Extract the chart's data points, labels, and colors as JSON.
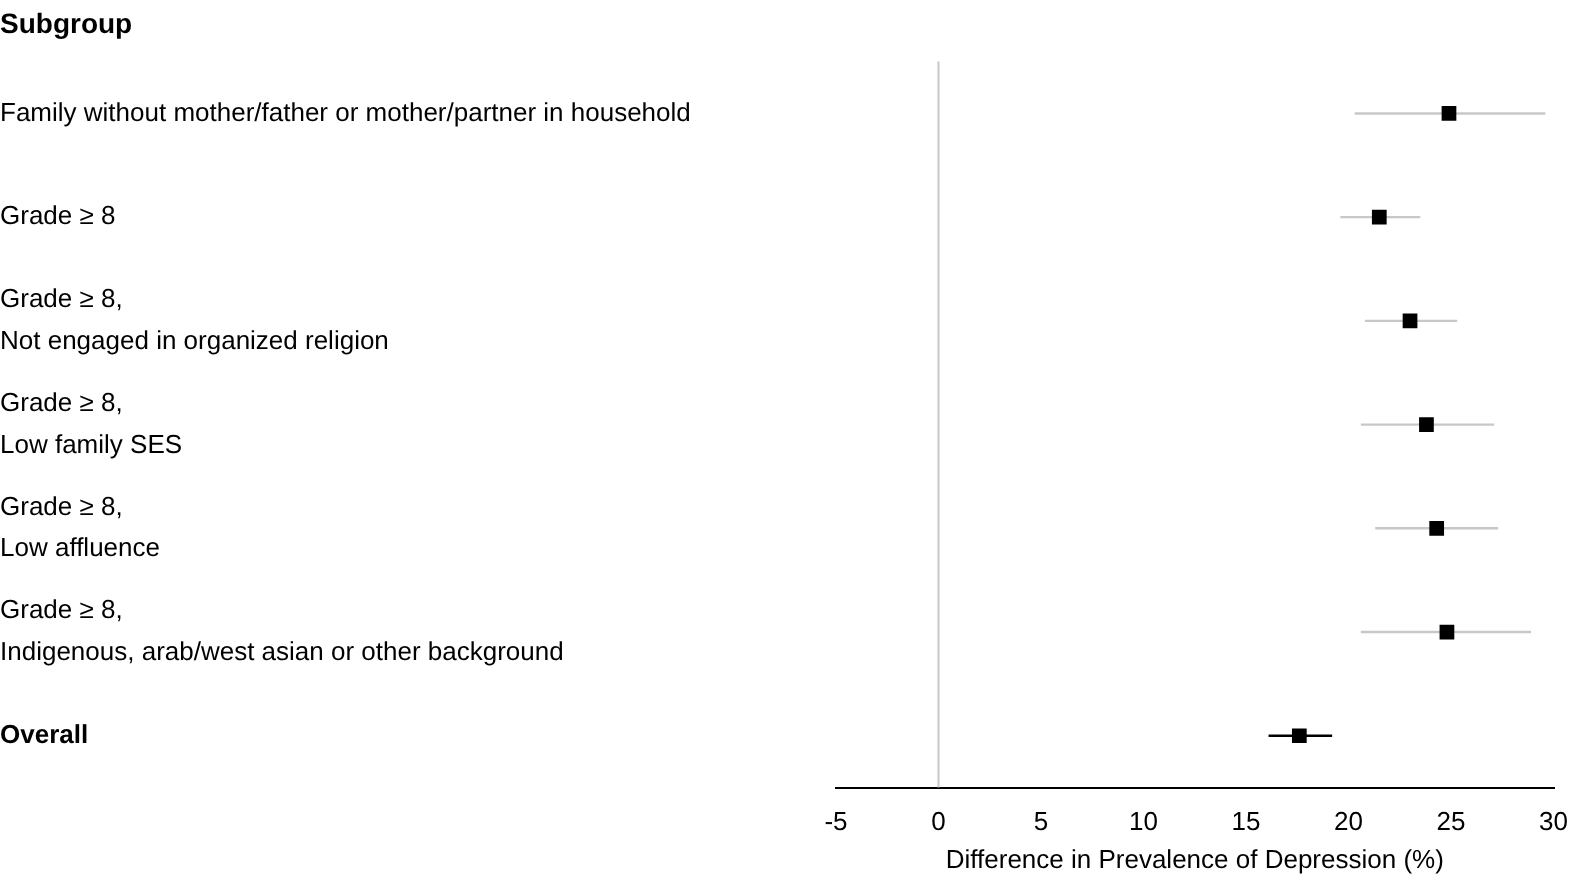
{
  "chart_data": {
    "type": "scatter",
    "orientation": "horizontal",
    "title": "Subgroup",
    "xlabel": "Difference in Prevalence of Depression (%)",
    "categories": [
      "Family without mother/father or mother/partner in household",
      "Grade ≥ 8",
      "Grade ≥ 8,\nNot engaged in organized religion",
      "Grade ≥ 8,\nLow family SES",
      "Grade ≥ 8,\nLow affluence",
      "Grade ≥ 8,\nIndigenous, arab/west asian or other background",
      "Overall"
    ],
    "series": [
      {
        "color": "#000000",
        "values": [
          24.9,
          21.5,
          23.0,
          23.8,
          24.3,
          24.8,
          17.6
        ],
        "errors": [
          [
            20.3,
            29.6
          ],
          [
            19.6,
            23.5
          ],
          [
            20.8,
            25.3
          ],
          [
            20.6,
            27.1
          ],
          [
            21.3,
            27.3
          ],
          [
            20.6,
            28.9
          ],
          [
            16.1,
            19.2
          ]
        ]
      }
    ],
    "xlim": [
      -5,
      30
    ],
    "xticks": [
      -5,
      0,
      5,
      10,
      15,
      20,
      25,
      30
    ],
    "ref_lines": [
      {
        "axis": "x",
        "value": 0,
        "color": "#c8c8c8"
      }
    ],
    "marker": "square",
    "grid": false,
    "legend": false
  }
}
